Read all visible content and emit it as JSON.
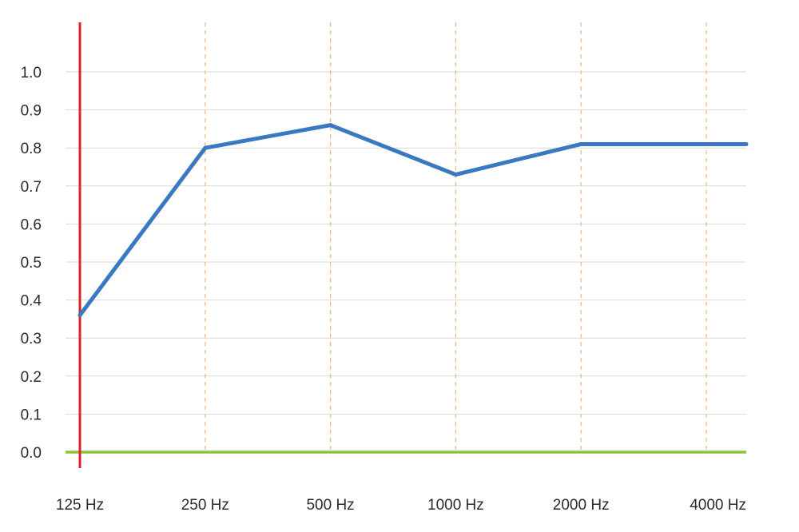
{
  "chart_data": {
    "type": "line",
    "x_categories": [
      "125 Hz",
      "250 Hz",
      "500 Hz",
      "1000 Hz",
      "2000 Hz",
      "4000 Hz"
    ],
    "y_ticks": [
      "0.0",
      "0.1",
      "0.2",
      "0.3",
      "0.4",
      "0.5",
      "0.6",
      "0.7",
      "0.8",
      "0.9",
      "1.0"
    ],
    "ylim": [
      0,
      1.0
    ],
    "series": [
      {
        "values": [
          0.36,
          0.8,
          0.86,
          0.73,
          0.81,
          0.81
        ]
      }
    ],
    "grid": {
      "horizontal": true,
      "vertical": "dashed"
    },
    "colors": {
      "series_line": "#3a78bf",
      "y_axis_line": "#d9242b",
      "x_baseline": "#8cc43c",
      "h_grid": "#d9d9d9",
      "v_grid": "#f4b47a"
    }
  }
}
